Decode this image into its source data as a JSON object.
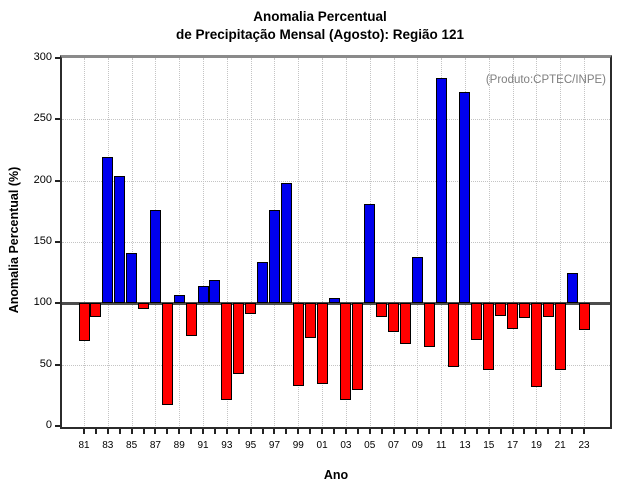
{
  "title": {
    "line1": "Anomalia Percentual",
    "line2": "de Precipitação Mensal (Agosto): Região 121"
  },
  "annotation": "(Produto:CPTEC/INPE)",
  "colors": {
    "above_baseline": "#0000EE",
    "below_baseline": "#FF0000",
    "bar_border": "#000000",
    "baseline_line": "#4d4d4d",
    "annotation_text": "#7f7f7f"
  },
  "chart_data": {
    "type": "bar",
    "title": "Anomalia Percentual de Precipitação Mensal (Agosto): Região 121",
    "xlabel": "Ano",
    "ylabel": "Anomalia Percentual (%)",
    "ylim": [
      0,
      300
    ],
    "yticks": [
      0,
      50,
      100,
      150,
      200,
      250,
      300
    ],
    "baseline": 100,
    "grid": true,
    "legend": "none",
    "categories": [
      "81",
      "82",
      "83",
      "84",
      "85",
      "86",
      "87",
      "88",
      "89",
      "90",
      "91",
      "92",
      "93",
      "94",
      "95",
      "96",
      "97",
      "98",
      "99",
      "00",
      "01",
      "02",
      "03",
      "04",
      "05",
      "06",
      "07",
      "08",
      "09",
      "10",
      "11",
      "12",
      "13",
      "14",
      "15",
      "16",
      "17",
      "18",
      "19",
      "20",
      "21",
      "22",
      "23"
    ],
    "xtick_labels": [
      "81",
      "83",
      "85",
      "87",
      "89",
      "91",
      "93",
      "95",
      "97",
      "99",
      "01",
      "03",
      "05",
      "07",
      "09",
      "11",
      "13",
      "15",
      "17",
      "19",
      "21",
      "23"
    ],
    "values": [
      69,
      89,
      219,
      204,
      141,
      95,
      176,
      17,
      107,
      73,
      114,
      119,
      21,
      42,
      91,
      134,
      176,
      198,
      33,
      72,
      34,
      104,
      21,
      29,
      181,
      89,
      77,
      67,
      138,
      64,
      284,
      48,
      272,
      70,
      46,
      90,
      79,
      88,
      32,
      89,
      46,
      125,
      78
    ]
  }
}
